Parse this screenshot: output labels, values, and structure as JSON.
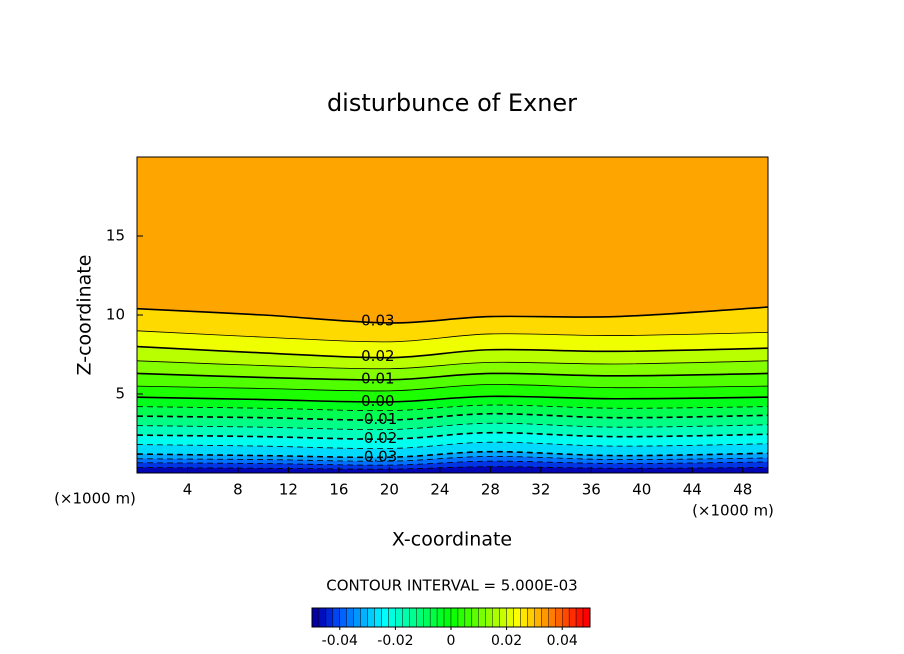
{
  "chart_data": {
    "type": "contour",
    "title": "disturbunce of Exner",
    "x_label": "X-coordinate",
    "y_label": "Z-coordinate",
    "x_unit_label": "(×1000 m)",
    "y_unit_label": "(×1000 m)",
    "contour_interval_text": "CONTOUR INTERVAL = 5.000E-03",
    "xlim": [
      0,
      50
    ],
    "ylim": [
      0,
      20
    ],
    "xticks": [
      4,
      8,
      12,
      16,
      20,
      24,
      28,
      32,
      36,
      40,
      44,
      48
    ],
    "yticks": [
      5,
      10,
      15
    ],
    "colorbar_lim": [
      -0.05,
      0.05
    ],
    "colorbar_ticks": [
      -0.04,
      -0.02,
      0,
      0.02,
      0.04
    ],
    "x": [
      0,
      10,
      20,
      28,
      38,
      50
    ],
    "contours": [
      {
        "level": -0.045,
        "z": [
          0.35,
          0.3,
          0.25,
          0.4,
          0.3,
          0.35
        ]
      },
      {
        "level": -0.04,
        "z": [
          0.65,
          0.6,
          0.5,
          0.75,
          0.6,
          0.7
        ]
      },
      {
        "level": -0.035,
        "z": [
          0.9,
          0.85,
          0.75,
          1.05,
          0.85,
          0.95
        ]
      },
      {
        "level": -0.03,
        "label": "-0.03",
        "z": [
          1.2,
          1.1,
          1.0,
          1.35,
          1.1,
          1.25
        ]
      },
      {
        "level": -0.025,
        "z": [
          1.8,
          1.7,
          1.55,
          1.95,
          1.7,
          1.85
        ]
      },
      {
        "level": -0.02,
        "label": "-0.02",
        "z": [
          2.4,
          2.3,
          2.15,
          2.55,
          2.3,
          2.45
        ]
      },
      {
        "level": -0.015,
        "z": [
          3.0,
          2.9,
          2.75,
          3.15,
          2.9,
          3.05
        ]
      },
      {
        "level": -0.01,
        "label": "-0.01",
        "z": [
          3.6,
          3.5,
          3.35,
          3.75,
          3.5,
          3.65
        ]
      },
      {
        "level": -0.005,
        "z": [
          4.2,
          4.1,
          3.95,
          4.3,
          4.1,
          4.2
        ]
      },
      {
        "level": 0,
        "label": "0.00",
        "z": [
          4.8,
          4.65,
          4.5,
          4.85,
          4.7,
          4.8
        ]
      },
      {
        "level": 0.005,
        "z": [
          5.5,
          5.35,
          5.2,
          5.6,
          5.4,
          5.5
        ]
      },
      {
        "level": 0.01,
        "label": "0.01",
        "z": [
          6.3,
          6.05,
          5.9,
          6.3,
          6.15,
          6.3
        ]
      },
      {
        "level": 0.015,
        "z": [
          7.1,
          6.8,
          6.6,
          7.0,
          6.9,
          7.1
        ]
      },
      {
        "level": 0.02,
        "label": "0.02",
        "z": [
          8.0,
          7.6,
          7.3,
          7.8,
          7.7,
          7.9
        ]
      },
      {
        "level": 0.025,
        "z": [
          9.0,
          8.6,
          8.3,
          8.8,
          8.7,
          8.9
        ]
      },
      {
        "level": 0.03,
        "label": "0.03",
        "z": [
          10.4,
          10.0,
          9.5,
          9.9,
          9.9,
          10.5
        ]
      }
    ]
  }
}
